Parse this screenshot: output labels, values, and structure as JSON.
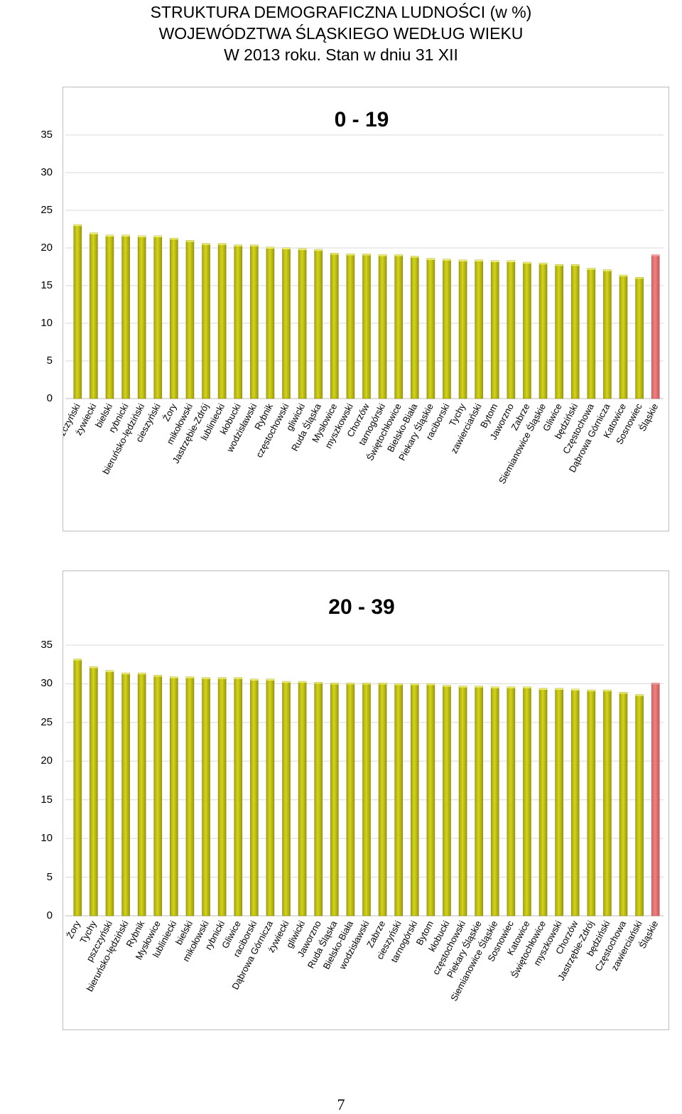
{
  "title": {
    "line1": "STRUKTURA DEMOGRAFICZNA LUDNOŚCI (w %)",
    "line2": "WOJEWÓDZTWA ŚLĄSKIEGO WEDŁUG WIEKU",
    "line3": "W 2013 roku. Stan w dniu 31 XII"
  },
  "page_number": "7",
  "colors": {
    "bar": "#d4d41a",
    "bar_highlight": "#f08080",
    "bar_edge": "#8a8a10",
    "grid": "#d9d9d9"
  },
  "chart_data": [
    {
      "type": "bar",
      "title": "0 - 19",
      "ylim": [
        0,
        35
      ],
      "yticks": [
        0,
        5,
        10,
        15,
        20,
        25,
        30,
        35
      ],
      "grid": true,
      "highlight": "Śląskie",
      "categories": [
        "pszczyński",
        "żywiecki",
        "bielski",
        "rybnicki",
        "bieruńsko-lędziński",
        "cieszyński",
        "Żory",
        "mikołowski",
        "Jastrzębie-Zdrój",
        "lubliniecki",
        "kłobucki",
        "wodzisławski",
        "Rybnik",
        "częstochowski",
        "gliwicki",
        "Ruda Śląska",
        "Mysłowice",
        "myszkowski",
        "Chorzów",
        "tarnogórski",
        "Świętochłowice",
        "Bielsko-Biała",
        "Piekary Śląskie",
        "raciborski",
        "Tychy",
        "zawierciański",
        "Bytom",
        "Jaworzno",
        "Zabrze",
        "Siemianowice Śląskie",
        "Gliwice",
        "będziński",
        "Częstochowa",
        "Dąbrowa Górnicza",
        "Katowice",
        "Sosnowiec",
        "Śląskie"
      ],
      "values": [
        23.1,
        22.0,
        21.7,
        21.7,
        21.6,
        21.6,
        21.3,
        21.0,
        20.6,
        20.6,
        20.4,
        20.4,
        20.1,
        20.0,
        19.9,
        19.8,
        19.3,
        19.2,
        19.2,
        19.1,
        19.1,
        18.9,
        18.6,
        18.5,
        18.4,
        18.4,
        18.3,
        18.3,
        18.1,
        18.0,
        17.8,
        17.8,
        17.3,
        17.1,
        16.4,
        16.1,
        19.1
      ]
    },
    {
      "type": "bar",
      "title": "20 - 39",
      "ylim": [
        0,
        35
      ],
      "yticks": [
        0,
        5,
        10,
        15,
        20,
        25,
        30,
        35
      ],
      "grid": true,
      "highlight": "Śląskie",
      "categories": [
        "Żory",
        "Tychy",
        "pszczyński",
        "bieruńsko-lędziński",
        "Rybnik",
        "Mysłowice",
        "lubliniecki",
        "bielski",
        "mikołowski",
        "rybnicki",
        "Gliwice",
        "raciborski",
        "Dąbrowa Górnicza",
        "żywiecki",
        "gliwicki",
        "Jaworzno",
        "Ruda Śląska",
        "Bielsko-Biała",
        "wodzisławski",
        "Zabrze",
        "cieszyński",
        "tarnogórski",
        "Bytom",
        "kłobucki",
        "częstochowski",
        "Piekary Śląskie",
        "Siemianowice Śląskie",
        "Sosnowiec",
        "Katowice",
        "Świętochłowice",
        "myszkowski",
        "Chorzów",
        "Jastrzębie-Zdrój",
        "będziński",
        "Częstochowa",
        "zawierciański",
        "Śląskie"
      ],
      "values": [
        33.2,
        32.2,
        31.7,
        31.4,
        31.4,
        31.1,
        30.9,
        30.9,
        30.8,
        30.8,
        30.8,
        30.6,
        30.6,
        30.3,
        30.3,
        30.2,
        30.1,
        30.1,
        30.1,
        30.1,
        30.0,
        30.0,
        30.0,
        29.8,
        29.7,
        29.7,
        29.6,
        29.6,
        29.6,
        29.4,
        29.4,
        29.3,
        29.2,
        29.2,
        28.9,
        28.6,
        30.1
      ]
    }
  ]
}
